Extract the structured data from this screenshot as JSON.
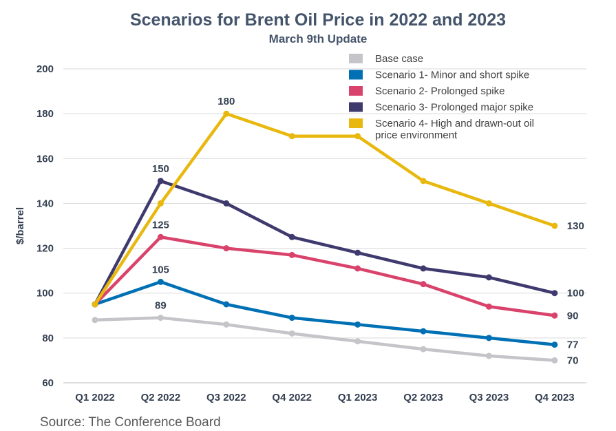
{
  "chart_data": {
    "type": "line",
    "title": "Scenarios for Brent Oil Price in 2022 and 2023",
    "subtitle": "March 9th Update",
    "xlabel": "",
    "ylabel": "$/barrel",
    "ylim": [
      60,
      200
    ],
    "yticks": [
      60,
      80,
      100,
      120,
      140,
      160,
      180,
      200
    ],
    "grid": true,
    "legend_position": "top-right",
    "categories": [
      "Q1 2022",
      "Q2 2022",
      "Q3 2022",
      "Q4 2022",
      "Q1 2023",
      "Q2 2023",
      "Q3 2023",
      "Q4 2023"
    ],
    "series": [
      {
        "name": "Base case",
        "color": "#c5c4c9",
        "values": [
          88,
          89,
          86,
          82,
          78.5,
          75,
          72,
          70
        ],
        "labels": [
          {
            "index": 1,
            "text": "89",
            "pos": "above"
          },
          {
            "index": 7,
            "text": "70",
            "pos": "right"
          }
        ]
      },
      {
        "name": "Scenario 1- Minor and short spike",
        "color": "#0070b4",
        "values": [
          95,
          105,
          95,
          89,
          86,
          83,
          80,
          77
        ],
        "labels": [
          {
            "index": 1,
            "text": "105",
            "pos": "above"
          },
          {
            "index": 7,
            "text": "77",
            "pos": "right"
          }
        ]
      },
      {
        "name": "Scenario 2- Prolonged spike",
        "color": "#d9436b",
        "values": [
          95,
          125,
          120,
          117,
          111,
          104,
          94,
          90
        ],
        "labels": [
          {
            "index": 1,
            "text": "125",
            "pos": "above"
          },
          {
            "index": 7,
            "text": "90",
            "pos": "right"
          }
        ]
      },
      {
        "name": "Scenario 3- Prolonged major spike",
        "color": "#3f3a6e",
        "values": [
          95,
          150,
          140,
          125,
          118,
          111,
          107,
          100
        ],
        "labels": [
          {
            "index": 1,
            "text": "150",
            "pos": "above"
          },
          {
            "index": 7,
            "text": "100",
            "pos": "right"
          }
        ]
      },
      {
        "name": "Scenario 4- High and drawn-out oil price environment",
        "color": "#e8b80e",
        "values": [
          95,
          140,
          180,
          170,
          170,
          150,
          140,
          130
        ],
        "labels": [
          {
            "index": 2,
            "text": "180",
            "pos": "above"
          },
          {
            "index": 7,
            "text": "130",
            "pos": "right"
          }
        ]
      }
    ],
    "legend_lines": [
      [
        "Base case"
      ],
      [
        "Scenario 1- Minor and short spike"
      ],
      [
        "Scenario 2- Prolonged spike"
      ],
      [
        "Scenario 3- Prolonged major spike"
      ],
      [
        "Scenario 4- High and drawn-out oil",
        "price environment"
      ]
    ]
  },
  "source": "Source: The Conference Board"
}
